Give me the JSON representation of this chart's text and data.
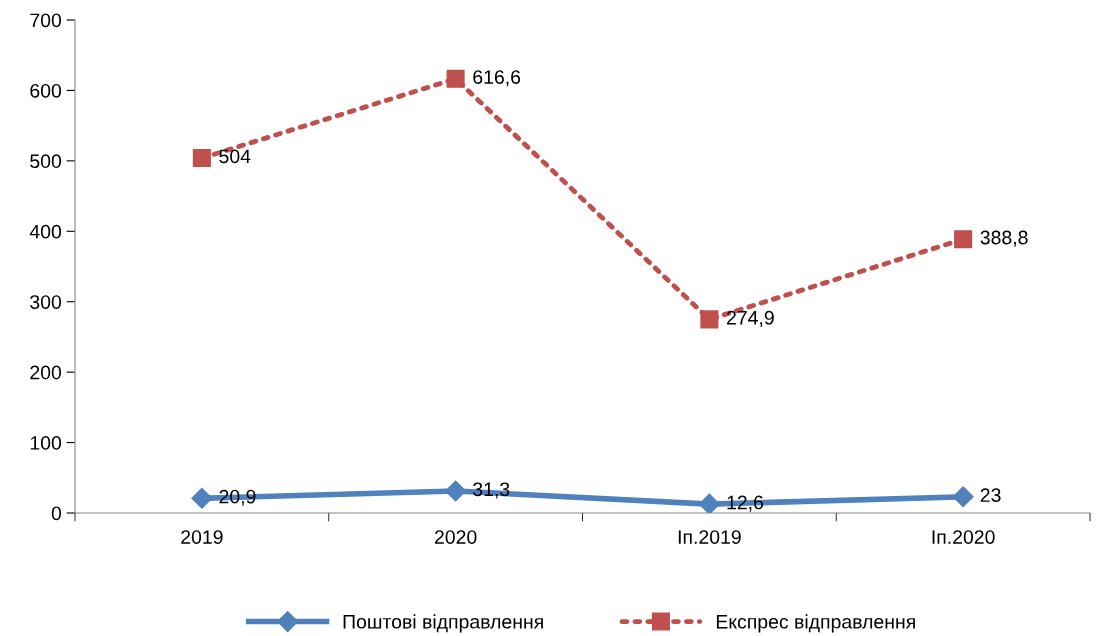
{
  "chart_data": {
    "type": "line",
    "categories": [
      "2019",
      "2020",
      "Іп.2019",
      "Іп.2020"
    ],
    "series": [
      {
        "name": "Поштові відправлення",
        "color": "#4f81bd",
        "values": [
          20.9,
          31.3,
          12.6,
          23
        ],
        "value_labels": [
          "20,9",
          "31,3",
          "12,6",
          "23"
        ],
        "marker": "diamond",
        "line_style": "solid"
      },
      {
        "name": "Експрес відправлення",
        "color": "#c0504d",
        "values": [
          504,
          616.6,
          274.9,
          388.8
        ],
        "value_labels": [
          "504",
          "616,6",
          "274,9",
          "388,8"
        ],
        "marker": "square",
        "line_style": "dotted"
      }
    ],
    "ylim": [
      0,
      700
    ],
    "yticks": [
      0,
      100,
      200,
      300,
      400,
      500,
      600,
      700
    ],
    "grid": false,
    "legend": "bottom"
  }
}
